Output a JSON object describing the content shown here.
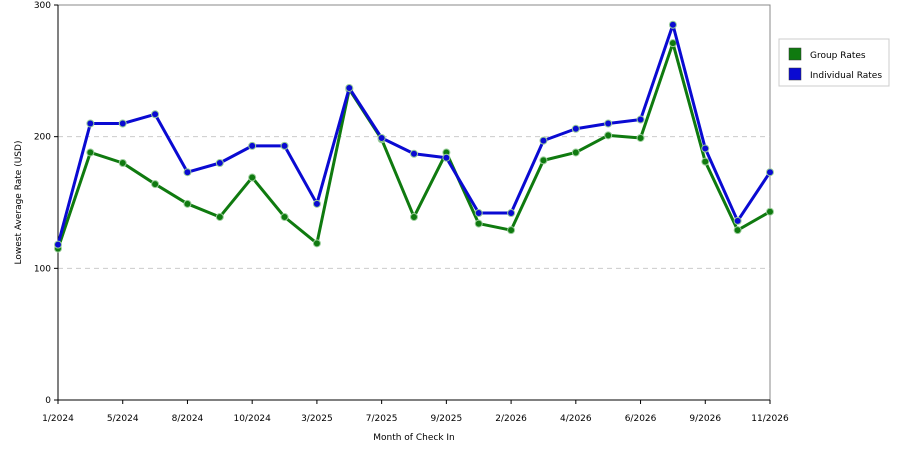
{
  "chart_data": {
    "type": "line",
    "x_label": "Month of Check In",
    "y_label": "Lowest Average Rate (USD)",
    "categories": [
      "1/2024",
      null,
      "5/2024",
      null,
      "8/2024",
      null,
      "10/2024",
      null,
      "3/2025",
      null,
      "7/2025",
      null,
      "9/2025",
      null,
      "2/2026",
      null,
      "4/2026",
      null,
      "6/2026",
      null,
      "9/2026",
      null,
      "11/2026"
    ],
    "series": [
      {
        "name": "Group Rates",
        "color": "#0f7a0f",
        "values": [
          115,
          188,
          180,
          164,
          149,
          139,
          169,
          139,
          119,
          236,
          198,
          139,
          188,
          134,
          129,
          182,
          188,
          201,
          199,
          271,
          181,
          129,
          143
        ]
      },
      {
        "name": "Individual Rates",
        "color": "#0a0ad2",
        "values": [
          118,
          210,
          210,
          217,
          173,
          180,
          193,
          193,
          149,
          237,
          199,
          187,
          184,
          142,
          142,
          197,
          206,
          210,
          213,
          285,
          191,
          136,
          173
        ]
      }
    ],
    "ylim": [
      0,
      300
    ],
    "yticks": [
      0,
      100,
      200,
      300
    ],
    "grid": true,
    "legend": "top-right"
  }
}
